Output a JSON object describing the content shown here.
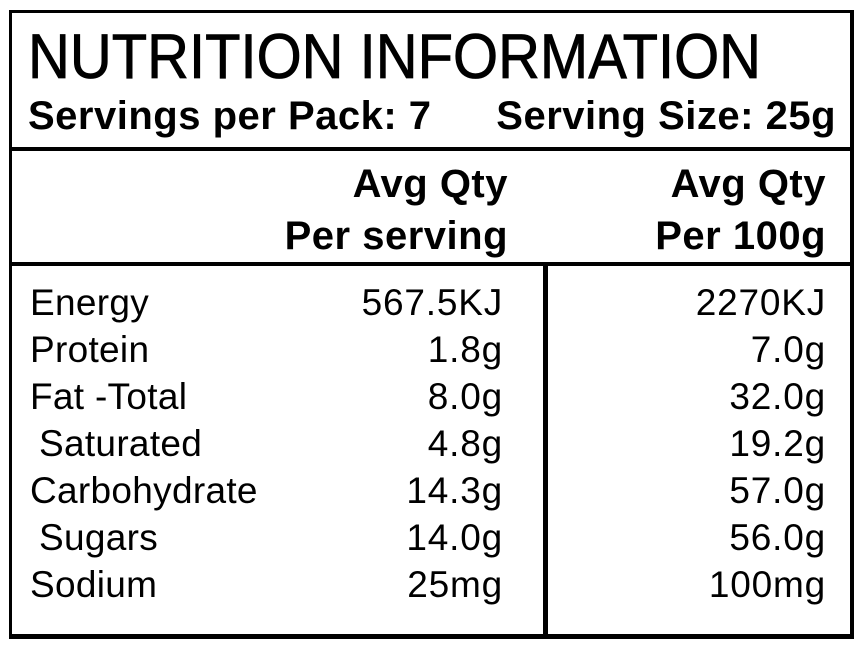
{
  "panel": {
    "title": "NUTRITION INFORMATION",
    "servings_per_pack": "Servings per Pack: 7",
    "serving_size": "Serving Size: 25g",
    "col_per_serving": {
      "line1": "Avg Qty",
      "line2": "Per serving"
    },
    "col_per_100g": {
      "line1": "Avg Qty",
      "line2": "Per 100g"
    },
    "rows": [
      {
        "nutrient": "Energy",
        "indent": false,
        "per_serving": "567.5KJ",
        "per_100g": "2270KJ"
      },
      {
        "nutrient": "Protein",
        "indent": false,
        "per_serving": "1.8g",
        "per_100g": "7.0g"
      },
      {
        "nutrient": "Fat -Total",
        "indent": false,
        "per_serving": "8.0g",
        "per_100g": "32.0g"
      },
      {
        "nutrient": "Saturated",
        "indent": true,
        "per_serving": "4.8g",
        "per_100g": "19.2g"
      },
      {
        "nutrient": "Carbohydrate",
        "indent": false,
        "per_serving": "14.3g",
        "per_100g": "57.0g"
      },
      {
        "nutrient": "Sugars",
        "indent": true,
        "per_serving": "14.0g",
        "per_100g": "56.0g"
      },
      {
        "nutrient": "Sodium",
        "indent": false,
        "per_serving": "25mg",
        "per_100g": "100mg"
      }
    ],
    "colors": {
      "text": "#000000",
      "background": "#ffffff",
      "border": "#000000"
    }
  }
}
